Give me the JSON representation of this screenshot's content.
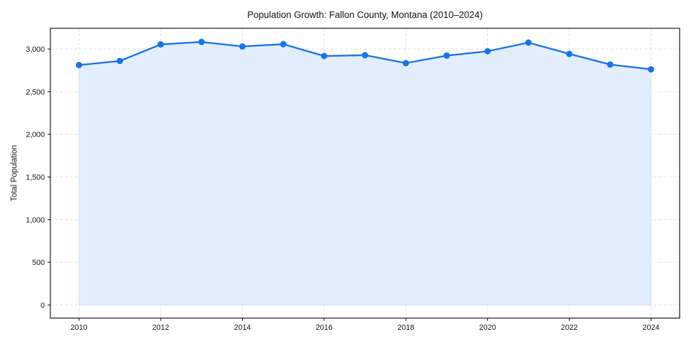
{
  "chart_data": {
    "type": "area",
    "title": "Population Growth: Fallon County, Montana (2010–2024)",
    "xlabel": "",
    "ylabel": "Total Population",
    "x": [
      2010,
      2011,
      2012,
      2013,
      2014,
      2015,
      2016,
      2017,
      2018,
      2019,
      2020,
      2021,
      2022,
      2023,
      2024
    ],
    "series": [
      {
        "name": "Total Population",
        "values": [
          2812,
          2860,
          3054,
          3083,
          3030,
          3057,
          2918,
          2928,
          2835,
          2923,
          2974,
          3075,
          2943,
          2818,
          2762
        ],
        "line_color": "#1a73e8",
        "fill_color": "#e3eefc"
      }
    ],
    "xticks": [
      2010,
      2012,
      2014,
      2016,
      2018,
      2020,
      2022,
      2024
    ],
    "xtick_labels": [
      "2010",
      "2012",
      "2014",
      "2016",
      "2018",
      "2020",
      "2022",
      "2024"
    ],
    "yticks": [
      0,
      500,
      1000,
      1500,
      2000,
      2500,
      3000
    ],
    "ytick_labels": [
      "0",
      "500",
      "1,000",
      "1,500",
      "2,000",
      "2,500",
      "3,000"
    ],
    "xlim": [
      2009.3,
      2024.7
    ],
    "ylim": [
      -154,
      3243
    ],
    "grid": true,
    "legend": null
  }
}
